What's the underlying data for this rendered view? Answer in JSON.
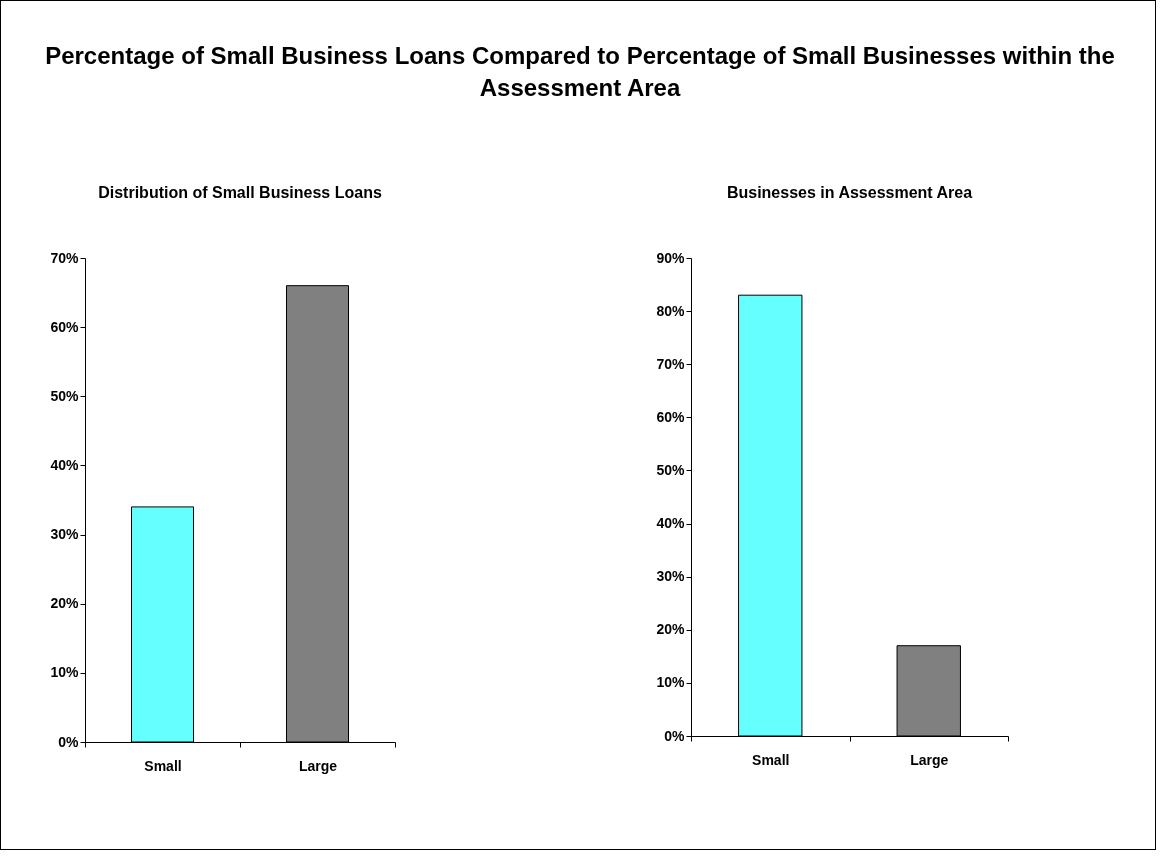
{
  "chart_data": [
    {
      "type": "other",
      "title": "Percentage of Small Business Loans Compared to Percentage of Small Businesses within the Assessment Area"
    },
    {
      "type": "bar",
      "title": "Distribution of Small Business Loans",
      "categories": [
        "Small",
        "Large"
      ],
      "values": [
        34,
        66
      ],
      "colors": [
        "#66ffff",
        "#808080"
      ],
      "ylim": [
        0,
        70
      ],
      "yticks": [
        {
          "value": 0,
          "label": "0%"
        },
        {
          "value": 10,
          "label": "10%"
        },
        {
          "value": 20,
          "label": "20%"
        },
        {
          "value": 30,
          "label": "30%"
        },
        {
          "value": 40,
          "label": "40%"
        },
        {
          "value": 50,
          "label": "50%"
        },
        {
          "value": 60,
          "label": "60%"
        },
        {
          "value": 70,
          "label": "70%"
        }
      ]
    },
    {
      "type": "bar",
      "title": "Businesses in Assessment Area",
      "categories": [
        "Small",
        "Large"
      ],
      "values": [
        83,
        17
      ],
      "colors": [
        "#66ffff",
        "#808080"
      ],
      "ylim": [
        0,
        90
      ],
      "yticks": [
        {
          "value": 0,
          "label": "0%"
        },
        {
          "value": 10,
          "label": "10%"
        },
        {
          "value": 20,
          "label": "20%"
        },
        {
          "value": 30,
          "label": "30%"
        },
        {
          "value": 40,
          "label": "40%"
        },
        {
          "value": 50,
          "label": "50%"
        },
        {
          "value": 60,
          "label": "60%"
        },
        {
          "value": 70,
          "label": "70%"
        },
        {
          "value": 80,
          "label": "80%"
        },
        {
          "value": 90,
          "label": "90%"
        }
      ]
    }
  ]
}
